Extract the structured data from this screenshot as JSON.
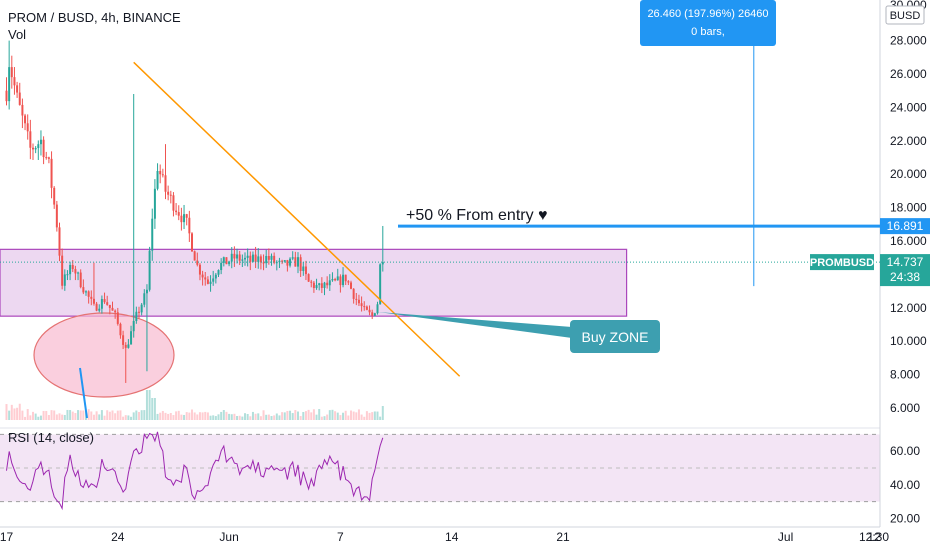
{
  "header": {
    "symbol_line": "PROM / BUSD, 4h, BINANCE",
    "volume_label": "Vol",
    "currency_badge": "BUSD"
  },
  "rsi": {
    "label": "RSI (14, close)",
    "ticks": [
      "60.00",
      "40.00",
      "20.00"
    ],
    "tick_values": [
      60,
      40,
      20
    ],
    "bands": [
      30,
      50,
      70
    ],
    "color": "#9c27b0"
  },
  "annotations": {
    "measure_line1": "26.460 (197.96%) 26460",
    "measure_line2": "0 bars,",
    "target_text": "+50 % From entry ♥",
    "buy_zone_text": "Buy ZONE",
    "price_tag_label": "PROMBUSD",
    "price_tag_value": "14.737",
    "price_tag_timer": "24:38",
    "target_tag_value": "16.891"
  },
  "colors": {
    "up": "#26a69a",
    "down": "#ef5350",
    "trendline": "#ff9800",
    "target_line": "#2196f3",
    "zone_fill": "#e1bee7",
    "zone_border": "#ab47bc",
    "ellipse_fill": "#f8bbd0",
    "ellipse_border": "#e57373",
    "callout": "#3d9fb0",
    "measure_box": "#2196f3"
  },
  "chart_data": {
    "type": "candlestick",
    "title": "PROM / BUSD, 4h, BINANCE",
    "y_axis": {
      "ticks": [
        "28.000",
        "26.000",
        "24.000",
        "22.000",
        "20.000",
        "18.000",
        "16.000",
        "14.000",
        "12.000",
        "10.000",
        "8.000",
        "6.000"
      ],
      "tick_values": [
        28,
        26,
        24,
        22,
        20,
        18,
        16,
        14,
        12,
        10,
        8,
        6
      ],
      "range": [
        5,
        30
      ],
      "extra_top_tick": "30.000"
    },
    "x_axis": {
      "ticks": [
        "17",
        "24",
        "Jun",
        "7",
        "14",
        "21",
        "Jul",
        "12:30",
        "12"
      ],
      "tick_candle_index": [
        0,
        42,
        84,
        126,
        168,
        210,
        294,
        336,
        378
      ]
    },
    "buy_zone": {
      "low": 11.5,
      "high": 15.5,
      "from_index": 0,
      "to_index": 234
    },
    "current_price": 14.737,
    "target_price": 16.891,
    "trendline": {
      "from": {
        "index": 48,
        "price": 26.7
      },
      "to": {
        "index": 171,
        "price": 7.9
      }
    },
    "measure": {
      "index": 282,
      "top": 28.5,
      "bottom": 13.3
    },
    "candle_count": 143,
    "anchors": [
      {
        "i": 0,
        "p": 25.0
      },
      {
        "i": 1,
        "p": 26.8
      },
      {
        "i": 4,
        "p": 24.5
      },
      {
        "i": 9,
        "p": 21.5
      },
      {
        "i": 13,
        "p": 22.0
      },
      {
        "i": 16,
        "p": 20.5
      },
      {
        "i": 19,
        "p": 17.0
      },
      {
        "i": 21,
        "p": 13.5
      },
      {
        "i": 25,
        "p": 14.5
      },
      {
        "i": 29,
        "p": 13.2
      },
      {
        "i": 33,
        "p": 12.0
      },
      {
        "i": 37,
        "p": 12.5
      },
      {
        "i": 41,
        "p": 11.5
      },
      {
        "i": 45,
        "p": 9.5
      },
      {
        "i": 49,
        "p": 11.5
      },
      {
        "i": 53,
        "p": 13.0
      },
      {
        "i": 55,
        "p": 17.5
      },
      {
        "i": 57,
        "p": 20.5
      },
      {
        "i": 60,
        "p": 19.0
      },
      {
        "i": 64,
        "p": 18.0
      },
      {
        "i": 68,
        "p": 17.0
      },
      {
        "i": 72,
        "p": 14.5
      },
      {
        "i": 76,
        "p": 13.5
      },
      {
        "i": 80,
        "p": 14.5
      },
      {
        "i": 86,
        "p": 15.0
      },
      {
        "i": 92,
        "p": 14.8
      },
      {
        "i": 98,
        "p": 15.0
      },
      {
        "i": 104,
        "p": 14.5
      },
      {
        "i": 110,
        "p": 14.8
      },
      {
        "i": 114,
        "p": 13.5
      },
      {
        "i": 118,
        "p": 13.2
      },
      {
        "i": 124,
        "p": 13.5
      },
      {
        "i": 128,
        "p": 13.8
      },
      {
        "i": 132,
        "p": 12.5
      },
      {
        "i": 135,
        "p": 11.8
      },
      {
        "i": 138,
        "p": 11.5
      },
      {
        "i": 140,
        "p": 12.3
      },
      {
        "i": 141,
        "p": 14.5
      },
      {
        "i": 142,
        "p": 14.737
      }
    ]
  }
}
